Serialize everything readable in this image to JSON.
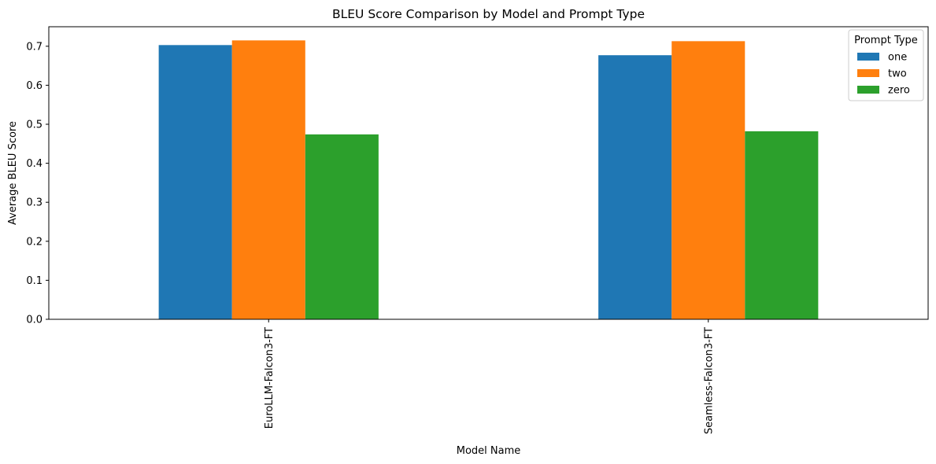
{
  "chart_data": {
    "type": "bar",
    "title": "BLEU Score Comparison by Model and Prompt Type",
    "xlabel": "Model Name",
    "ylabel": "Average BLEU Score",
    "categories": [
      "EuroLLM-Falcon3-FT",
      "Seamless-Falcon3-FT"
    ],
    "series": [
      {
        "name": "one",
        "color": "#1f77b4",
        "values": [
          0.703,
          0.677
        ]
      },
      {
        "name": "two",
        "color": "#ff7f0e",
        "values": [
          0.715,
          0.713
        ]
      },
      {
        "name": "zero",
        "color": "#2ca02c",
        "values": [
          0.474,
          0.482
        ]
      }
    ],
    "ylim": [
      0,
      0.75
    ],
    "yticks": [
      "0.0",
      "0.1",
      "0.2",
      "0.3",
      "0.4",
      "0.5",
      "0.6",
      "0.7"
    ],
    "ytick_values": [
      0,
      0.1,
      0.2,
      0.3,
      0.4,
      0.5,
      0.6,
      0.7
    ],
    "grid": false,
    "legend": {
      "title": "Prompt Type",
      "position": "top-right"
    }
  }
}
